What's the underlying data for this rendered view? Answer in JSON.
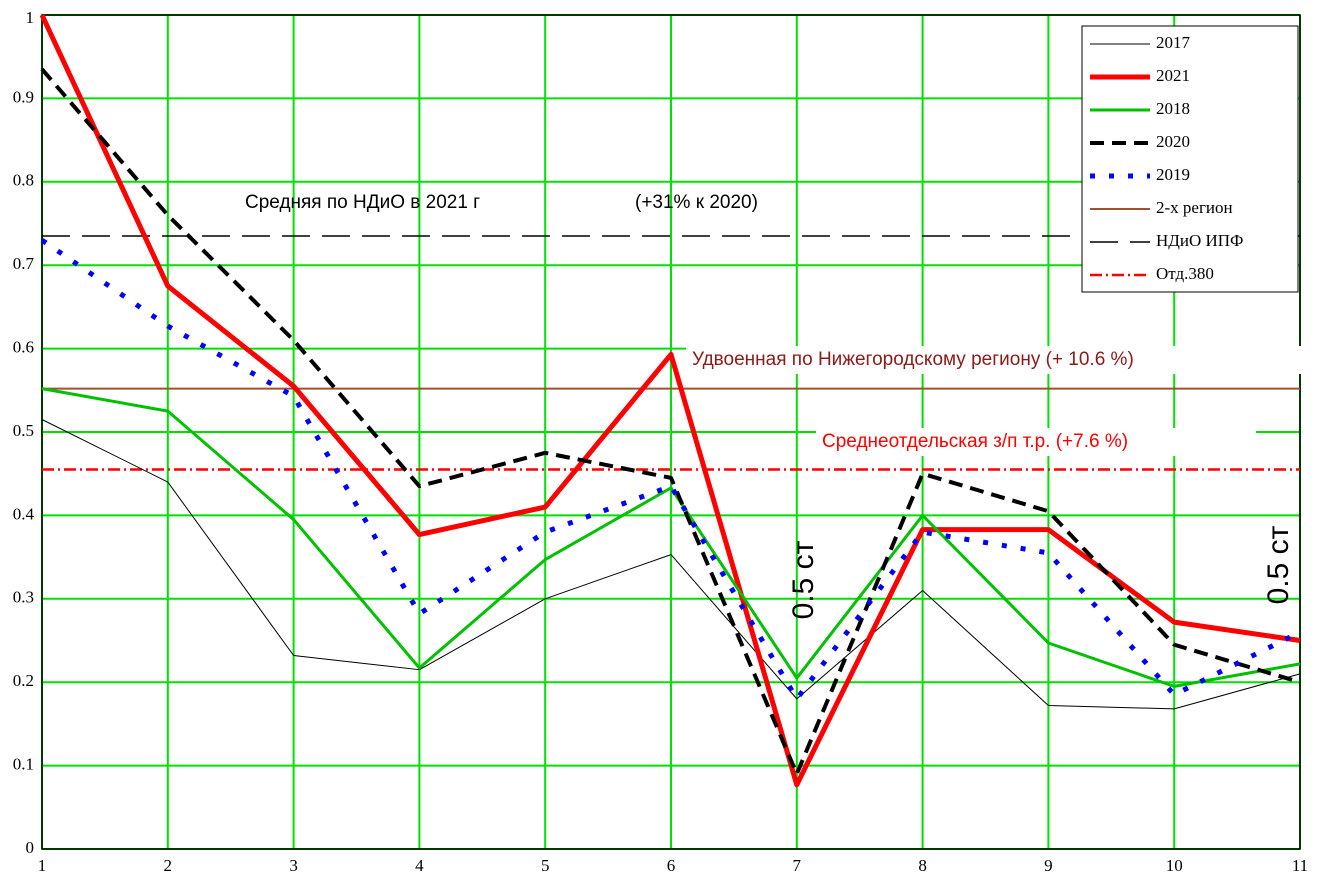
{
  "chart_data": {
    "type": "line",
    "x": [
      1,
      2,
      3,
      4,
      5,
      6,
      7,
      8,
      9,
      10,
      11
    ],
    "xlim": [
      1,
      11
    ],
    "xticks": [
      1,
      2,
      3,
      4,
      5,
      6,
      7,
      8,
      9,
      10,
      11
    ],
    "ylim": [
      0,
      1
    ],
    "yticks": [
      0,
      0.1,
      0.2,
      0.3,
      0.4,
      0.5,
      0.6,
      0.7,
      0.8,
      0.9,
      1
    ],
    "grid": true,
    "grid_color": "#00e000",
    "legend": "upper right",
    "series": [
      {
        "name": "2017",
        "color": "#000000",
        "style": "solid",
        "width": 1,
        "values": [
          0.515,
          0.44,
          0.232,
          0.215,
          0.3,
          0.353,
          0.18,
          0.31,
          0.172,
          0.168,
          0.21
        ]
      },
      {
        "name": "2021",
        "color": "#ff0000",
        "style": "solid",
        "width": 5,
        "values": [
          1.0,
          0.675,
          0.555,
          0.377,
          0.41,
          0.593,
          0.077,
          0.383,
          0.383,
          0.272,
          0.25
        ]
      },
      {
        "name": "2018",
        "color": "#00c000",
        "style": "solid",
        "width": 3,
        "values": [
          0.552,
          0.525,
          0.395,
          0.217,
          0.347,
          0.433,
          0.205,
          0.4,
          0.247,
          0.195,
          0.222
        ]
      },
      {
        "name": "2020",
        "color": "#000000",
        "style": "dashed",
        "width": 4,
        "values": [
          0.935,
          0.76,
          0.61,
          0.435,
          0.475,
          0.445,
          0.09,
          0.45,
          0.405,
          0.245,
          0.2
        ]
      },
      {
        "name": "2019",
        "color": "#0000ff",
        "style": "dotted",
        "width": 5,
        "values": [
          0.73,
          0.627,
          0.543,
          0.282,
          0.38,
          0.435,
          0.18,
          0.38,
          0.355,
          0.185,
          0.26
        ]
      }
    ],
    "reference_lines": [
      {
        "name": "2-х регион",
        "color": "#a0522d",
        "style": "solid",
        "width": 2,
        "value": 0.552
      },
      {
        "name": "НДиО ИПФ",
        "color": "#000000",
        "style": "longdash",
        "width": 1.5,
        "value": 0.735
      },
      {
        "name": "Отд.380",
        "color": "#ff0000",
        "style": "dashdot",
        "width": 2.5,
        "value": 0.455
      }
    ],
    "annotations": [
      {
        "text": "Средняя по НДиО в 2021 г",
        "color": "#000000"
      },
      {
        "text": "(+31% к 2020)",
        "color": "#000000"
      },
      {
        "text": "Удвоенная по Нижегородскому региону (+ 10.6 %)",
        "color": "#8b1a1a"
      },
      {
        "text": "Среднеотдельская з/п  т.р. (+7.6 %)",
        "color": "#ff0000"
      },
      {
        "text": "0.5 ст",
        "color": "#000000"
      },
      {
        "text": "0.5 ст",
        "color": "#000000"
      }
    ]
  }
}
